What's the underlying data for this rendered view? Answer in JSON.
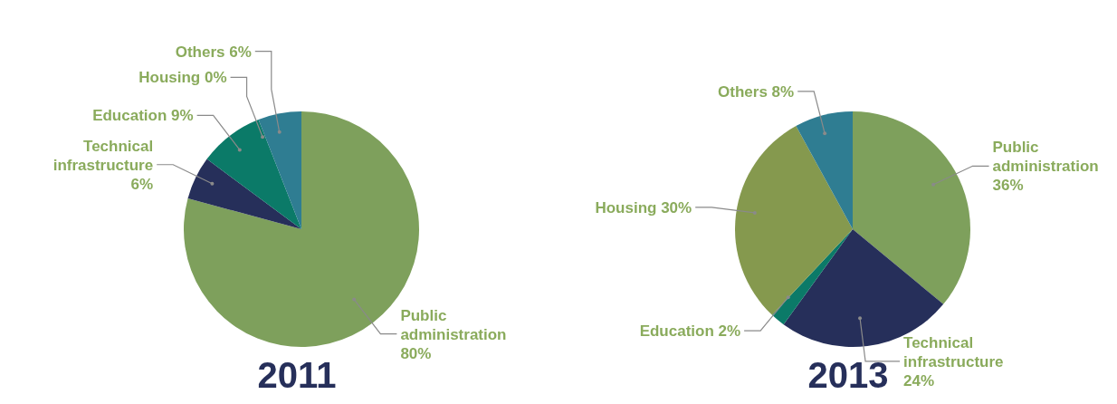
{
  "chart_data": [
    {
      "type": "pie",
      "title": "2011",
      "categories": [
        "Public administration",
        "Technical infrastructure",
        "Education",
        "Housing",
        "Others"
      ],
      "values": [
        80,
        6,
        9,
        0,
        6
      ],
      "value_labels": [
        "80%",
        "6%",
        "9%",
        "0%",
        "6%"
      ],
      "colors": [
        "#7ea05c",
        "#262f5a",
        "#0b7a68",
        "#85994e",
        "#2f7d92"
      ]
    },
    {
      "type": "pie",
      "title": "2013",
      "categories": [
        "Public administration",
        "Technical infrastructure",
        "Education",
        "Housing",
        "Others"
      ],
      "values": [
        36,
        24,
        2,
        30,
        8
      ],
      "value_labels": [
        "36%",
        "24%",
        "2%",
        "30%",
        "8%"
      ],
      "colors": [
        "#7ea05c",
        "#262f5a",
        "#0b7a68",
        "#85994e",
        "#2f7d92"
      ]
    }
  ]
}
